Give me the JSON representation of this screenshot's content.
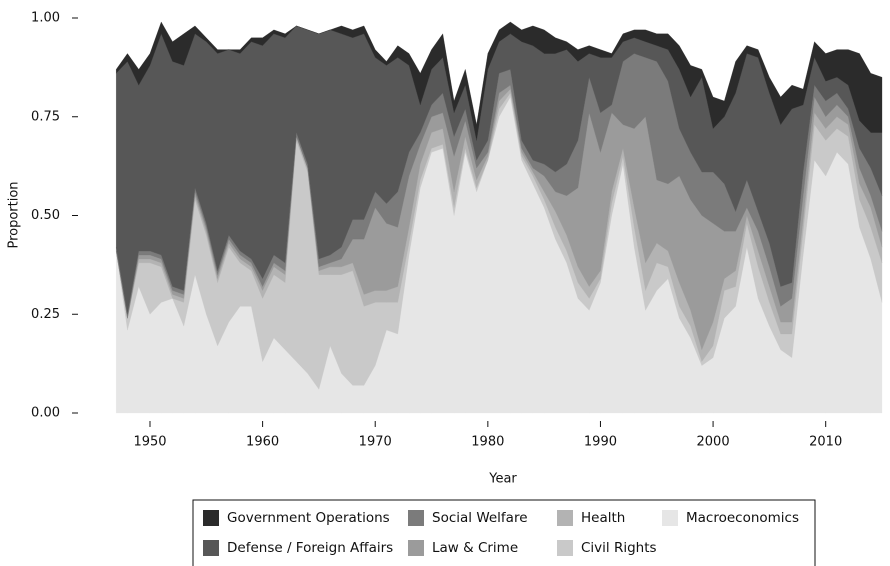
{
  "chart_data": {
    "type": "stacked_area",
    "x_label": "Year",
    "y_label": "Proportion",
    "x": [
      1947,
      1948,
      1949,
      1950,
      1951,
      1952,
      1953,
      1954,
      1955,
      1956,
      1957,
      1958,
      1959,
      1960,
      1961,
      1962,
      1963,
      1964,
      1965,
      1966,
      1967,
      1968,
      1969,
      1970,
      1971,
      1972,
      1973,
      1974,
      1975,
      1976,
      1977,
      1978,
      1979,
      1980,
      1981,
      1982,
      1983,
      1984,
      1985,
      1986,
      1987,
      1988,
      1989,
      1990,
      1991,
      1992,
      1993,
      1994,
      1995,
      1996,
      1997,
      1998,
      1999,
      2000,
      2001,
      2002,
      2003,
      2004,
      2005,
      2006,
      2007,
      2008,
      2009,
      2010,
      2011,
      2012,
      2013,
      2014,
      2015
    ],
    "xlim": [
      1947,
      2015
    ],
    "xticks": [
      1950,
      1960,
      1970,
      1980,
      1990,
      2000,
      2010
    ],
    "ylim": [
      0,
      1
    ],
    "yticks": [
      {
        "value": 0,
        "label": "0.00"
      },
      {
        "value": 0.25,
        "label": "0.25"
      },
      {
        "value": 0.5,
        "label": "0.50"
      },
      {
        "value": 0.75,
        "label": "0.75"
      },
      {
        "value": 1,
        "label": "1.00"
      }
    ],
    "series": [
      {
        "name": "Macroeconomics",
        "color": "#e6e6e6",
        "values": [
          0.41,
          0.21,
          0.32,
          0.25,
          0.28,
          0.29,
          0.22,
          0.35,
          0.25,
          0.17,
          0.23,
          0.27,
          0.27,
          0.13,
          0.19,
          0.16,
          0.13,
          0.1,
          0.06,
          0.17,
          0.1,
          0.07,
          0.07,
          0.12,
          0.21,
          0.2,
          0.4,
          0.57,
          0.66,
          0.67,
          0.5,
          0.66,
          0.56,
          0.64,
          0.75,
          0.8,
          0.64,
          0.58,
          0.52,
          0.44,
          0.38,
          0.29,
          0.26,
          0.33,
          0.5,
          0.63,
          0.42,
          0.26,
          0.31,
          0.34,
          0.24,
          0.19,
          0.12,
          0.14,
          0.24,
          0.27,
          0.42,
          0.29,
          0.22,
          0.16,
          0.14,
          0.4,
          0.64,
          0.6,
          0.66,
          0.63,
          0.47,
          0.39,
          0.28
        ]
      },
      {
        "name": "Civil Rights",
        "color": "#c9c9c9",
        "values": [
          0,
          0.03,
          0.06,
          0.13,
          0.09,
          0,
          0.06,
          0.19,
          0.2,
          0.16,
          0.19,
          0.11,
          0.09,
          0.16,
          0.16,
          0.17,
          0.56,
          0.51,
          0.29,
          0.18,
          0.25,
          0.29,
          0.2,
          0.16,
          0.07,
          0.08,
          0.03,
          0.02,
          0.01,
          0.01,
          0.02,
          0.01,
          0.01,
          0,
          0.02,
          0.01,
          0.01,
          0.02,
          0.02,
          0.03,
          0.03,
          0.04,
          0.03,
          0.01,
          0.03,
          0.02,
          0.05,
          0.05,
          0.07,
          0.03,
          0.03,
          0.03,
          0.01,
          0.03,
          0.07,
          0.05,
          0.06,
          0.08,
          0.06,
          0.04,
          0.06,
          0.06,
          0.09,
          0.09,
          0.06,
          0.07,
          0.07,
          0.08,
          0.1
        ]
      },
      {
        "name": "Health",
        "color": "#b3b3b3",
        "values": [
          0,
          0,
          0.01,
          0.01,
          0.01,
          0.01,
          0.01,
          0.01,
          0.01,
          0.01,
          0.01,
          0.01,
          0.01,
          0.02,
          0.02,
          0.02,
          0.01,
          0.01,
          0.01,
          0.02,
          0.02,
          0.02,
          0.03,
          0.03,
          0.03,
          0.04,
          0.04,
          0.04,
          0.04,
          0.04,
          0.04,
          0.03,
          0.02,
          0.01,
          0.02,
          0.01,
          0.01,
          0.01,
          0.02,
          0.04,
          0.04,
          0.04,
          0.03,
          0.02,
          0.03,
          0.02,
          0.05,
          0.07,
          0.05,
          0.04,
          0.06,
          0.04,
          0.03,
          0.06,
          0.03,
          0.04,
          0.02,
          0.04,
          0.04,
          0.03,
          0.03,
          0.03,
          0.03,
          0.03,
          0.03,
          0.03,
          0.04,
          0.05,
          0.04
        ]
      },
      {
        "name": "Law & Crime",
        "color": "#9b9b9b",
        "values": [
          0,
          0,
          0.01,
          0.01,
          0.01,
          0.01,
          0.01,
          0.01,
          0.01,
          0.01,
          0.01,
          0.01,
          0.01,
          0.01,
          0.01,
          0.01,
          0,
          0,
          0.01,
          0.01,
          0.02,
          0.06,
          0.14,
          0.21,
          0.17,
          0.15,
          0.13,
          0.05,
          0.04,
          0.04,
          0.09,
          0.04,
          0.03,
          0.01,
          0.02,
          0.01,
          0.01,
          0.01,
          0.04,
          0.05,
          0.1,
          0.2,
          0.44,
          0.3,
          0.2,
          0.06,
          0.2,
          0.37,
          0.16,
          0.17,
          0.27,
          0.28,
          0.34,
          0.25,
          0.12,
          0.1,
          0.02,
          0.05,
          0.05,
          0.04,
          0.06,
          0.06,
          0.04,
          0.03,
          0.03,
          0.02,
          0.04,
          0.03,
          0.04
        ]
      },
      {
        "name": "Social Welfare",
        "color": "#7b7b7b",
        "values": [
          0.01,
          0.01,
          0.01,
          0.01,
          0.01,
          0.01,
          0.01,
          0.01,
          0.01,
          0.01,
          0.01,
          0.01,
          0.01,
          0.02,
          0.02,
          0.02,
          0.01,
          0.01,
          0.02,
          0.02,
          0.03,
          0.05,
          0.05,
          0.04,
          0.05,
          0.09,
          0.06,
          0.03,
          0.03,
          0.05,
          0.05,
          0.03,
          0.02,
          0.03,
          0.05,
          0.04,
          0.02,
          0.02,
          0.03,
          0.05,
          0.08,
          0.12,
          0.09,
          0.1,
          0.02,
          0.16,
          0.19,
          0.15,
          0.3,
          0.26,
          0.12,
          0.12,
          0.11,
          0.13,
          0.12,
          0.05,
          0.07,
          0.05,
          0.06,
          0.05,
          0.04,
          0.06,
          0.03,
          0.04,
          0.03,
          0.02,
          0.05,
          0.07,
          0.09
        ]
      },
      {
        "name": "Defense / Foreign Affairs",
        "color": "#575757",
        "values": [
          0.44,
          0.64,
          0.42,
          0.47,
          0.56,
          0.57,
          0.57,
          0.39,
          0.46,
          0.55,
          0.47,
          0.5,
          0.55,
          0.59,
          0.56,
          0.57,
          0.27,
          0.34,
          0.57,
          0.57,
          0.54,
          0.46,
          0.47,
          0.34,
          0.35,
          0.34,
          0.22,
          0.07,
          0.09,
          0.09,
          0.06,
          0.06,
          0.05,
          0.18,
          0.08,
          0.09,
          0.25,
          0.29,
          0.28,
          0.3,
          0.29,
          0.2,
          0.06,
          0.14,
          0.12,
          0.05,
          0.04,
          0.04,
          0.04,
          0.08,
          0.15,
          0.14,
          0.24,
          0.11,
          0.17,
          0.3,
          0.32,
          0.39,
          0.38,
          0.41,
          0.44,
          0.17,
          0.07,
          0.05,
          0.04,
          0.06,
          0.07,
          0.09,
          0.16
        ]
      },
      {
        "name": "Government Operations",
        "color": "#2b2b2b",
        "values": [
          0.01,
          0.02,
          0.04,
          0.03,
          0.03,
          0.05,
          0.08,
          0.02,
          0.01,
          0.01,
          0,
          0.01,
          0.01,
          0.02,
          0.01,
          0.01,
          0,
          0,
          0,
          0,
          0.02,
          0.02,
          0.02,
          0.02,
          0.01,
          0.03,
          0.03,
          0.08,
          0.05,
          0.06,
          0.03,
          0.04,
          0.04,
          0.04,
          0.03,
          0.03,
          0.03,
          0.05,
          0.06,
          0.04,
          0.02,
          0.03,
          0.02,
          0.02,
          0.01,
          0.02,
          0.02,
          0.03,
          0.03,
          0.04,
          0.06,
          0.08,
          0.02,
          0.08,
          0.04,
          0.08,
          0.02,
          0.02,
          0.04,
          0.07,
          0.06,
          0.04,
          0.04,
          0.07,
          0.07,
          0.09,
          0.17,
          0.15,
          0.14
        ]
      }
    ]
  }
}
